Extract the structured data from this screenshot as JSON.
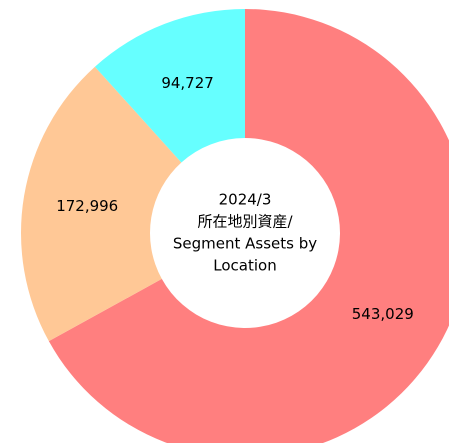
{
  "chart_data": {
    "type": "donut",
    "center_label": [
      "2024/3",
      "所在地別資産/",
      "Segment Assets by",
      "Location"
    ],
    "categories": [
      null,
      null,
      null
    ],
    "values": [
      543029,
      172996,
      94727
    ],
    "value_labels": [
      "543,029",
      "172,996",
      "94,727"
    ],
    "colors": [
      "#ff7f7f",
      "#ffc896",
      "#66ffff"
    ]
  }
}
